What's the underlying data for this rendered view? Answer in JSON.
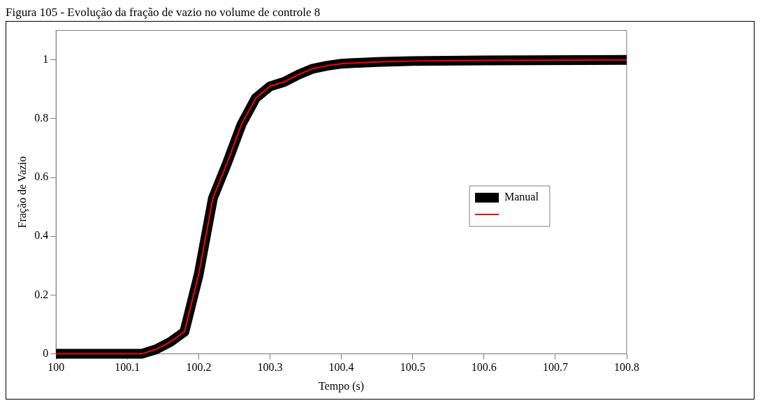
{
  "chart_data": {
    "type": "line",
    "title": "Figura 105 - Evolução da fração de vazio no volume de controle 8",
    "xlabel": "Tempo (s)",
    "ylabel": "Fração de Vazio",
    "x": [
      100,
      100.12,
      100.14,
      100.16,
      100.18,
      100.2,
      100.22,
      100.24,
      100.26,
      100.28,
      100.3,
      100.32,
      100.34,
      100.36,
      100.38,
      100.4,
      100.45,
      100.5,
      100.6,
      100.8
    ],
    "series": [
      {
        "name": "Manual",
        "color": "#000000",
        "values": [
          0,
          0,
          0.015,
          0.04,
          0.075,
          0.27,
          0.53,
          0.65,
          0.78,
          0.87,
          0.91,
          0.925,
          0.95,
          0.97,
          0.98,
          0.987,
          0.993,
          0.996,
          0.998,
          1.0
        ]
      },
      {
        "color": "#ff0000",
        "values": [
          0,
          0,
          0.015,
          0.04,
          0.075,
          0.27,
          0.53,
          0.65,
          0.78,
          0.87,
          0.91,
          0.925,
          0.95,
          0.97,
          0.98,
          0.987,
          0.993,
          0.996,
          0.998,
          1.0
        ]
      }
    ],
    "xlim": [
      100,
      100.8
    ],
    "xticks": [
      100,
      100.1,
      100.2,
      100.3,
      100.4,
      100.5,
      100.6,
      100.7,
      100.8
    ],
    "ylim": [
      0,
      1.1
    ],
    "yticks": [
      0,
      0.2,
      0.4,
      0.6,
      0.8,
      1
    ],
    "grid": false,
    "legend": "right",
    "marker": "none",
    "line_style": "solid"
  }
}
